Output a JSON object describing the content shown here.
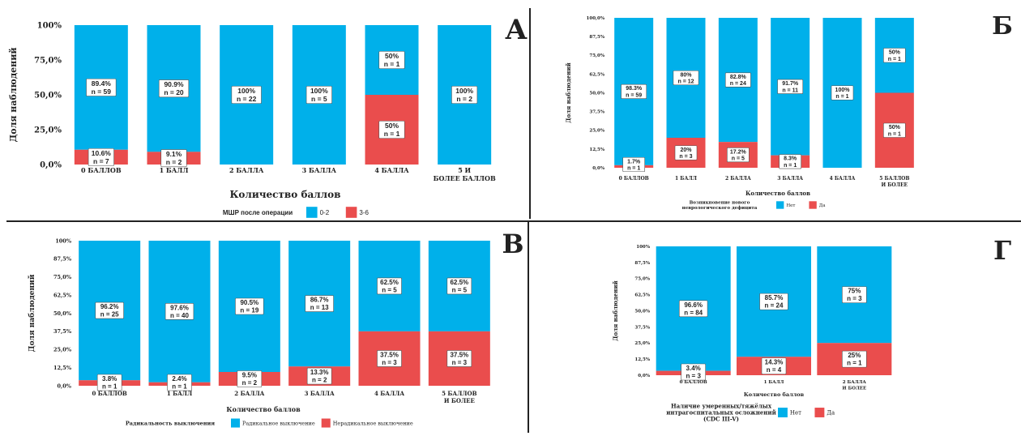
{
  "colors": {
    "blue": "#00b0ea",
    "red": "#ea4d4d",
    "divider": "#222222",
    "label_bg": "#ffffff",
    "text": "#222222"
  },
  "chart_data": [
    {
      "panel": "A",
      "type": "bar",
      "stacked": true,
      "title": "",
      "xlabel": "Количество баллов",
      "ylabel": "Доля наблюдений",
      "ylim": [
        0,
        1
      ],
      "y_ticks": [
        "0,0%",
        "25,0%",
        "50,0%",
        "75,0%",
        "100%"
      ],
      "categories": [
        "0 баллов",
        "1 балл",
        "2 балла",
        "3 балла",
        "4 балла",
        "5 и более баллов"
      ],
      "legend_title": "МШР после операции",
      "series": [
        {
          "name": "0-2",
          "color": "#00b0ea",
          "values": [
            0.894,
            0.909,
            1.0,
            1.0,
            0.5,
            1.0
          ],
          "labels": [
            "89.4%",
            "90.9%",
            "100%",
            "100%",
            "50%",
            "100%"
          ],
          "n": [
            "n = 59",
            "n = 20",
            "n = 22",
            "n = 5",
            "n = 1",
            "n = 2"
          ]
        },
        {
          "name": "3-6",
          "color": "#ea4d4d",
          "values": [
            0.106,
            0.091,
            0,
            0,
            0.5,
            0
          ],
          "labels": [
            "10.6%",
            "9.1%",
            "",
            "",
            "50%",
            ""
          ],
          "n": [
            "n = 7",
            "n = 2",
            "",
            "",
            "n = 1",
            ""
          ]
        }
      ]
    },
    {
      "panel": "Б",
      "type": "bar",
      "stacked": true,
      "title": "",
      "xlabel": "Количество баллов",
      "ylabel": "Доля наблюдений",
      "ylim": [
        0,
        1
      ],
      "y_ticks": [
        "0,0%",
        "12,5%",
        "25,0%",
        "37,5%",
        "50,0%",
        "62,5%",
        "75,0%",
        "87,5%",
        "100,0%"
      ],
      "categories": [
        "0 баллов",
        "1 балл",
        "2 балла",
        "3 балла",
        "4 балла",
        "5 баллов и более"
      ],
      "legend_title": "Возникновение нового неврологического дефицита",
      "series": [
        {
          "name": "Нет",
          "color": "#00b0ea",
          "values": [
            0.983,
            0.8,
            0.828,
            0.917,
            1.0,
            0.5
          ],
          "labels": [
            "98.3%",
            "80%",
            "82.8%",
            "91.7%",
            "100%",
            "50%"
          ],
          "n": [
            "n = 59",
            "n = 12",
            "n = 24",
            "n = 11",
            "n = 1",
            "n = 1"
          ]
        },
        {
          "name": "Да",
          "color": "#ea4d4d",
          "values": [
            0.017,
            0.2,
            0.172,
            0.083,
            0,
            0.5
          ],
          "labels": [
            "1.7%",
            "20%",
            "17.2%",
            "8.3%",
            "",
            "50%"
          ],
          "n": [
            "n = 1",
            "n = 3",
            "n = 5",
            "n = 1",
            "",
            "n = 1"
          ]
        }
      ]
    },
    {
      "panel": "В",
      "type": "bar",
      "stacked": true,
      "title": "",
      "xlabel": "Количество баллов",
      "ylabel": "Доля наблюдений",
      "ylim": [
        0,
        1
      ],
      "y_ticks": [
        "0,0%",
        "12,5%",
        "25,0%",
        "37,5%",
        "50,0%",
        "62,5%",
        "75,0%",
        "87,5%",
        "100%"
      ],
      "categories": [
        "0 баллов",
        "1 балл",
        "2 балла",
        "3 балла",
        "4 балла",
        "5 баллов и более"
      ],
      "legend_title": "Радикальность выключения",
      "series": [
        {
          "name": "Радикальное выключение",
          "color": "#00b0ea",
          "values": [
            0.962,
            0.976,
            0.905,
            0.867,
            0.625,
            0.625
          ],
          "labels": [
            "96.2%",
            "97.6%",
            "90.5%",
            "86.7%",
            "62.5%",
            "62.5%"
          ],
          "n": [
            "n = 25",
            "n = 40",
            "n = 19",
            "n = 13",
            "n = 5",
            "n = 5"
          ]
        },
        {
          "name": "Нерадикальное выключение",
          "color": "#ea4d4d",
          "values": [
            0.038,
            0.024,
            0.095,
            0.133,
            0.375,
            0.375
          ],
          "labels": [
            "3.8%",
            "2.4%",
            "9.5%",
            "13.3%",
            "37.5%",
            "37.5%"
          ],
          "n": [
            "n = 1",
            "n = 1",
            "n = 2",
            "n = 2",
            "n = 3",
            "n = 3"
          ]
        }
      ]
    },
    {
      "panel": "Г",
      "type": "bar",
      "stacked": true,
      "title": "",
      "xlabel": "Количество баллов",
      "ylabel": "Доля наблюдений",
      "ylim": [
        0,
        1
      ],
      "y_ticks": [
        "0,0%",
        "12,5%",
        "25,0%",
        "37,5%",
        "50,0%",
        "62,5%",
        "75,0%",
        "87,5%",
        "100%"
      ],
      "categories": [
        "0 баллов",
        "1 балл",
        "2 балла и более"
      ],
      "legend_title": "Наличие умеренных/тяжёлых интрагоспитальных осложнений (CDC III-V)",
      "series": [
        {
          "name": "Нет",
          "color": "#00b0ea",
          "values": [
            0.966,
            0.857,
            0.75
          ],
          "labels": [
            "96.6%",
            "85.7%",
            "75%"
          ],
          "n": [
            "n = 84",
            "n = 24",
            "n = 3"
          ]
        },
        {
          "name": "Да",
          "color": "#ea4d4d",
          "values": [
            0.034,
            0.143,
            0.25
          ],
          "labels": [
            "3.4%",
            "14.3%",
            "25%"
          ],
          "n": [
            "n = 3",
            "n = 4",
            "n = 1"
          ]
        }
      ]
    }
  ]
}
